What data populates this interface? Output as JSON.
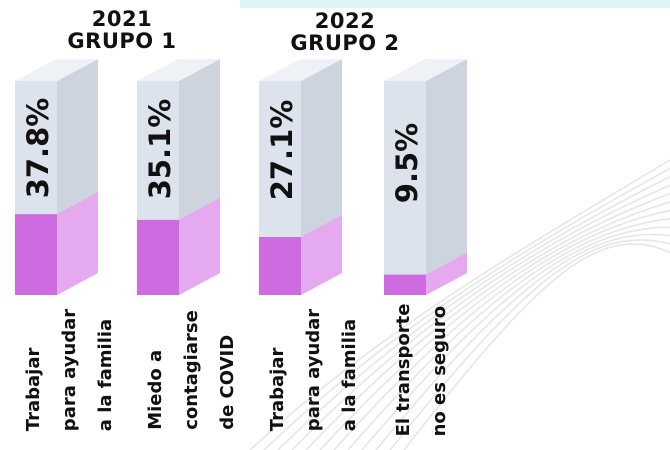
{
  "colors": {
    "bar_front": "#dde3ec",
    "bar_side": "#cdd4de",
    "bar_top": "#eef1f6",
    "fill_front": "#cf6be0",
    "fill_side": "#e4a9ef",
    "fill_top": "#d98ae6",
    "wave": "#e6e6ea",
    "accent_top": "#dff4f6"
  },
  "groups": [
    {
      "year": "2021",
      "name": "GRUPO 1"
    },
    {
      "year": "2022",
      "name": "GRUPO 2"
    }
  ],
  "chart_data": {
    "type": "bar",
    "categories": [
      "Trabajar para ayudar a la familia",
      "Miedo a contagiarse de COVID",
      "Trabajar para ayudar a la familia",
      "El transporte no es seguro"
    ],
    "values": [
      37.8,
      35.1,
      27.1,
      9.5
    ],
    "value_labels": [
      "37.8%",
      "35.1%",
      "27.1%",
      "9.5%"
    ],
    "label_lines": [
      [
        "Trabajar",
        "para ayudar",
        "a la familia"
      ],
      [
        "Miedo a",
        "contagiarse",
        "de COVID"
      ],
      [
        "Trabajar",
        "para ayudar",
        "a la familia"
      ],
      [
        "El transporte",
        "no es seguro"
      ]
    ],
    "group_of_bar": [
      0,
      0,
      1,
      1
    ],
    "ylim": [
      0,
      100
    ]
  }
}
